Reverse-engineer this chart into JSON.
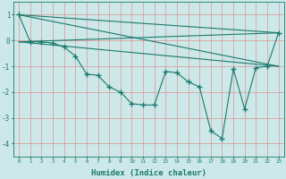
{
  "xlabel": "Humidex (Indice chaleur)",
  "bg_color": "#cce8e8",
  "line_color": "#1a7a6e",
  "grid_color": "#e08080",
  "xlim": [
    -0.5,
    23.5
  ],
  "ylim": [
    -4.5,
    1.5
  ],
  "xticks": [
    0,
    1,
    2,
    3,
    4,
    5,
    6,
    7,
    8,
    9,
    10,
    11,
    12,
    13,
    14,
    15,
    16,
    17,
    18,
    19,
    20,
    21,
    22,
    23
  ],
  "yticks": [
    -4,
    -3,
    -2,
    -1,
    0,
    1
  ],
  "series": [
    {
      "x": [
        0,
        1,
        2,
        3,
        4,
        5,
        6,
        7,
        8,
        9,
        10,
        11,
        12,
        13,
        14,
        15,
        16,
        17,
        18,
        19,
        20,
        21,
        22,
        23
      ],
      "y": [
        1.0,
        -0.05,
        -0.05,
        -0.1,
        -0.25,
        -0.6,
        -1.3,
        -1.35,
        -1.8,
        -2.0,
        -2.45,
        -2.5,
        -2.5,
        -1.2,
        -1.25,
        -1.6,
        -1.8,
        -3.5,
        -3.8,
        -1.1,
        -2.65,
        -1.05,
        -1.0,
        0.3
      ],
      "marker": true
    },
    {
      "x": [
        0,
        23
      ],
      "y": [
        1.0,
        0.3
      ],
      "marker": false
    },
    {
      "x": [
        0,
        23
      ],
      "y": [
        -0.05,
        0.3
      ],
      "marker": false
    },
    {
      "x": [
        0,
        23
      ],
      "y": [
        -0.05,
        -1.0
      ],
      "marker": false
    },
    {
      "x": [
        0,
        23
      ],
      "y": [
        1.0,
        -1.0
      ],
      "marker": false
    }
  ]
}
